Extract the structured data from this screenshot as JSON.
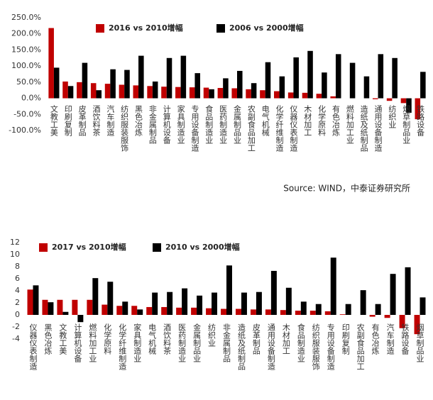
{
  "chart_data": [
    {
      "type": "bar",
      "categories": [
        "文教工美",
        "印刷复制",
        "皮革制品",
        "酒饮料茶",
        "汽车制造",
        "纺织服装服饰",
        "黑色冶炼",
        "非金属制品",
        "计算机设备",
        "家具制造业",
        "专用设备制造",
        "食品制造业",
        "医药制造业",
        "金属制品业",
        "农副食品加工",
        "电气机械",
        "化学纤维制造",
        "仪器仪表制造",
        "木材加工",
        "化学原料",
        "有色冶炼",
        "燃料加工业",
        "造纸及纸制品",
        "通用设备制造",
        "纺织业",
        "烟草制品业",
        "铁路设备"
      ],
      "series": [
        {
          "name": "2016 vs 2010增幅",
          "color": "#c00000",
          "values": [
            218,
            52,
            50,
            47,
            45,
            42,
            40,
            38,
            36,
            35,
            34,
            33,
            32,
            31,
            28,
            25,
            22,
            18,
            17,
            14,
            6,
            0,
            0,
            -3,
            -8,
            -15,
            -65
          ]
        },
        {
          "name": "2006 vs 2000增幅",
          "color": "#000000",
          "values": [
            95,
            38,
            110,
            25,
            90,
            88,
            132,
            52,
            125,
            132,
            78,
            28,
            62,
            85,
            47,
            112,
            68,
            127,
            147,
            80,
            137,
            110,
            68,
            137,
            125,
            -45,
            82
          ]
        }
      ],
      "ylim": [
        -100,
        250
      ],
      "yticks": [
        {
          "value": 250,
          "label": "250.0%"
        },
        {
          "value": 200,
          "label": "200.0%"
        },
        {
          "value": 150,
          "label": "150.0%"
        },
        {
          "value": 100,
          "label": "100.0%"
        },
        {
          "value": 50,
          "label": "50.0%"
        },
        {
          "value": 0,
          "label": "0.0%"
        },
        {
          "value": -50,
          "label": "-50.0%"
        },
        {
          "value": -100,
          "label": "-100.0%"
        }
      ],
      "grid": false,
      "source": "Source: WIND，中泰证券研究所"
    },
    {
      "type": "bar",
      "categories": [
        "仪器仪表制造",
        "黑色冶炼",
        "文教工美",
        "计算机设备",
        "燃料加工业",
        "化学原料",
        "化学纤维制造",
        "家具制造业",
        "电气机械",
        "酒饮料茶",
        "医药制造业",
        "金属制品业",
        "纺织业",
        "非金属制品",
        "造纸及纸制品",
        "皮革制品",
        "通用设备制造",
        "木材加工",
        "食品制造业",
        "纺织服装服饰",
        "专用设备制造",
        "印刷复制",
        "农副食品加工",
        "有色冶炼",
        "汽车制造",
        "铁路设备",
        "烟草制品业"
      ],
      "series": [
        {
          "name": "2017 vs 2010增幅",
          "color": "#c00000",
          "values": [
            4.2,
            2.5,
            2.5,
            2.5,
            2.5,
            1.7,
            1.5,
            1.5,
            1.3,
            1.3,
            1.2,
            1.2,
            1.1,
            1.0,
            1.0,
            0.9,
            0.9,
            0.8,
            0.7,
            0.7,
            0.6,
            0.1,
            0,
            -0.3,
            -0.5,
            -2.2,
            -3.2
          ]
        },
        {
          "name": "2010 vs 2000增幅",
          "color": "#000000",
          "values": [
            4.9,
            2.1,
            0.5,
            -1.2,
            6.1,
            5.5,
            2.2,
            0.9,
            3.7,
            3.8,
            4.4,
            3.2,
            3.7,
            8.2,
            3.7,
            3.8,
            7.3,
            4.5,
            2.2,
            1.8,
            9.5,
            1.8,
            4.1,
            1.8,
            6.8,
            7.9,
            2.9
          ]
        }
      ],
      "ylim": [
        -4,
        12
      ],
      "yticks": [
        12,
        10,
        8,
        6,
        4,
        2,
        0,
        -2,
        -4
      ],
      "grid": false
    }
  ]
}
